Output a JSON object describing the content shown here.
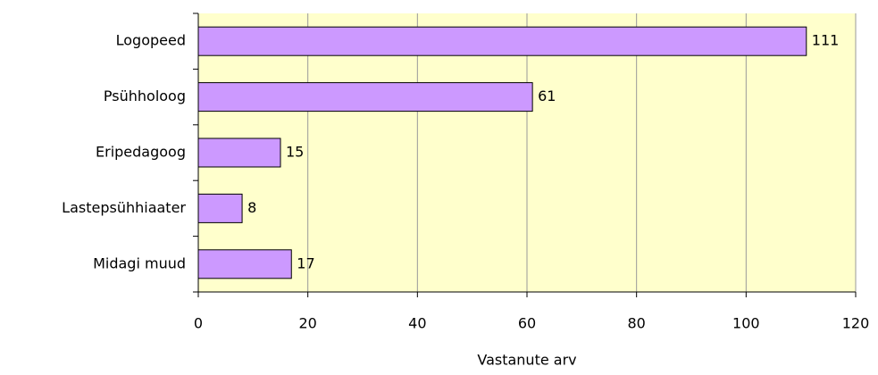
{
  "chart_data": {
    "type": "bar",
    "orientation": "horizontal",
    "categories": [
      "Logopeed",
      "Psühholoog",
      "Eripedagoog",
      "Lastepsühhiaater",
      "Midagi muud"
    ],
    "values": [
      111,
      61,
      15,
      8,
      17
    ],
    "color": "#cc99ff",
    "xlabel": "Vastanute arv",
    "xlim": [
      0,
      120
    ],
    "xticks": [
      0,
      20,
      40,
      60,
      80,
      100,
      120
    ],
    "grid": true,
    "plot_background": "#ffffcc"
  }
}
